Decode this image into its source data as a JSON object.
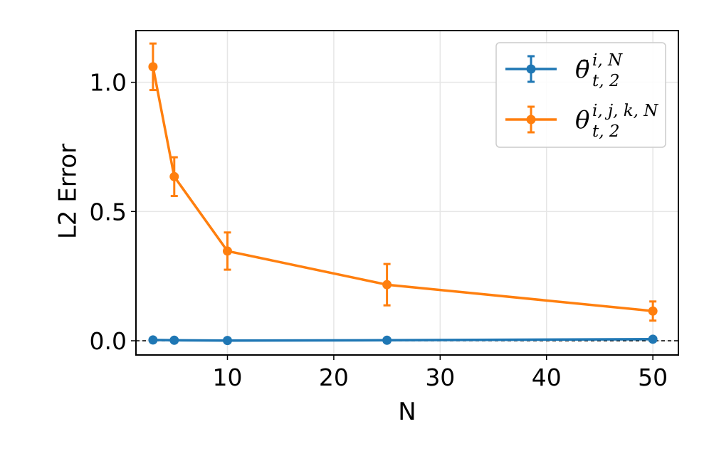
{
  "chart_data": {
    "type": "line",
    "xlabel": "N",
    "ylabel": "L2 Error",
    "xlim": [
      1.4,
      52.4
    ],
    "ylim": [
      -0.055,
      1.2
    ],
    "xticks": [
      10,
      20,
      30,
      40,
      50
    ],
    "yticks": [
      0.0,
      0.5,
      1.0
    ],
    "xtick_labels": [
      "10",
      "20",
      "30",
      "40",
      "50"
    ],
    "ytick_labels": [
      "0.0",
      "0.5",
      "1.0"
    ],
    "grid": true,
    "legend_position": "top-right",
    "reference_line": {
      "y": 0.0,
      "style": "dashed",
      "color": "#000000"
    },
    "x": [
      3,
      5,
      10,
      25,
      50
    ],
    "series": [
      {
        "name": "θ̄ i,N t,2",
        "symbol": "θ̄",
        "sup": "i, N",
        "sub": "t, 2",
        "color": "#1f77b4",
        "values": [
          0.003,
          0.002,
          0.001,
          0.002,
          0.006
        ],
        "errors": [
          0.0,
          0.0,
          0.0,
          0.0,
          0.0
        ]
      },
      {
        "name": "θ i,j,k,N t,2",
        "symbol": "θ",
        "sup": "i, j, k, N",
        "sub": "t, 2",
        "color": "#ff7f0e",
        "values": [
          1.06,
          0.635,
          0.347,
          0.217,
          0.115
        ],
        "errors": [
          0.09,
          0.075,
          0.072,
          0.08,
          0.037
        ]
      }
    ]
  }
}
